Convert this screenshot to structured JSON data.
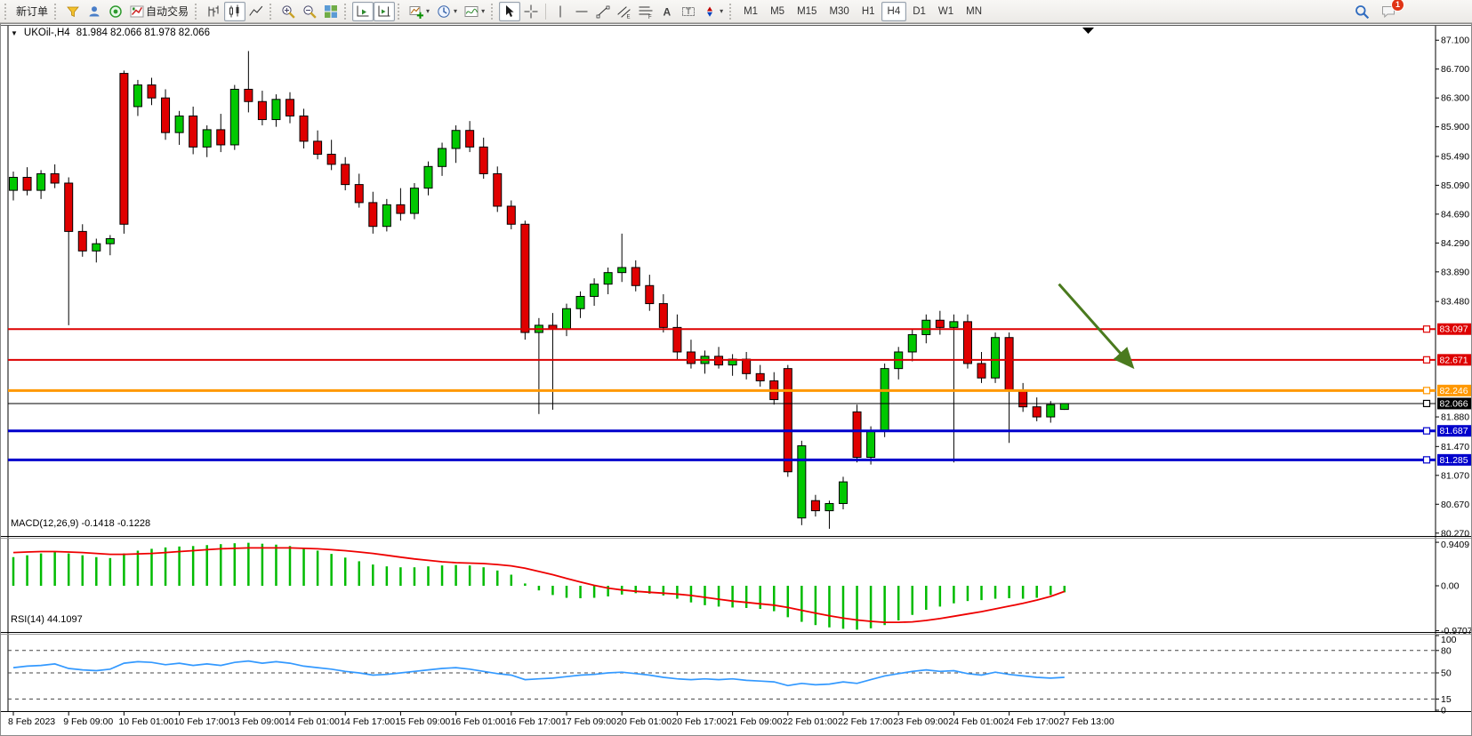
{
  "toolbar": {
    "new_order_label": "新订单",
    "auto_trading_label": "自动交易",
    "notification_count": "1",
    "tool_letters": {
      "channel": "E",
      "fibo": "F",
      "text": "A",
      "label": "T"
    },
    "timeframes": [
      "M1",
      "M5",
      "M15",
      "M30",
      "H1",
      "H4",
      "D1",
      "W1",
      "MN"
    ],
    "active_timeframe": "H4"
  },
  "chart": {
    "symbol_period": "UKOil-,H4",
    "ohlc": "81.984 82.066 81.978 82.066"
  },
  "chart_data": [
    {
      "type": "candlestick",
      "title": "UKOil-,H4",
      "ohlc_display": "81.984 82.066 81.978 82.066",
      "up_color": "#00c800",
      "down_color": "#e00000",
      "wick_color": "#000000",
      "ylim": [
        80.23,
        87.3
      ],
      "y_ticks": [
        "87.100",
        "86.700",
        "86.300",
        "85.900",
        "85.490",
        "85.090",
        "84.690",
        "84.290",
        "83.890",
        "83.480",
        "81.880",
        "81.470",
        "81.070",
        "80.670",
        "80.270"
      ],
      "x_labels": [
        "8 Feb 2023",
        "9 Feb 09:00",
        "10 Feb 01:00",
        "10 Feb 17:00",
        "13 Feb 09:00",
        "14 Feb 01:00",
        "14 Feb 17:00",
        "15 Feb 09:00",
        "16 Feb 01:00",
        "16 Feb 17:00",
        "17 Feb 09:00",
        "20 Feb 01:00",
        "20 Feb 17:00",
        "21 Feb 09:00",
        "22 Feb 01:00",
        "22 Feb 17:00",
        "23 Feb 09:00",
        "24 Feb 01:00",
        "24 Feb 17:00",
        "27 Feb 13:00"
      ],
      "x_label_every": 4,
      "hlines": [
        {
          "price": 83.097,
          "label": "83.097",
          "color": "#dd0000",
          "width": 2
        },
        {
          "price": 82.671,
          "label": "82.671",
          "color": "#dd0000",
          "width": 2
        },
        {
          "price": 82.246,
          "label": "82.246",
          "color": "#ff9800",
          "width": 3
        },
        {
          "price": 82.066,
          "label": "82.066",
          "color": "#000000",
          "width": 1
        },
        {
          "price": 81.687,
          "label": "81.687",
          "color": "#0000cc",
          "width": 3
        },
        {
          "price": 81.285,
          "label": "81.285",
          "color": "#0000cc",
          "width": 3
        }
      ],
      "arrow": {
        "from_bar": 75.6,
        "from_price": 83.72,
        "to_bar": 80.8,
        "to_price": 82.6,
        "color": "#4a7a1e"
      },
      "candles": [
        [
          85.02,
          85.28,
          84.88,
          85.2
        ],
        [
          85.2,
          85.34,
          84.95,
          85.02
        ],
        [
          85.02,
          85.3,
          84.9,
          85.25
        ],
        [
          85.25,
          85.38,
          85.05,
          85.12
        ],
        [
          85.12,
          85.2,
          83.15,
          84.45
        ],
        [
          84.45,
          84.55,
          84.1,
          84.18
        ],
        [
          84.18,
          84.35,
          84.02,
          84.28
        ],
        [
          84.28,
          84.4,
          84.12,
          84.35
        ],
        [
          86.64,
          86.68,
          84.42,
          84.55
        ],
        [
          86.18,
          86.55,
          86.05,
          86.48
        ],
        [
          86.48,
          86.58,
          86.2,
          86.3
        ],
        [
          86.3,
          86.42,
          85.72,
          85.82
        ],
        [
          85.82,
          86.12,
          85.65,
          86.05
        ],
        [
          86.05,
          86.18,
          85.52,
          85.62
        ],
        [
          85.62,
          85.92,
          85.48,
          85.86
        ],
        [
          85.86,
          86.08,
          85.55,
          85.65
        ],
        [
          85.65,
          86.48,
          85.58,
          86.42
        ],
        [
          86.42,
          86.95,
          86.1,
          86.25
        ],
        [
          86.25,
          86.4,
          85.92,
          86.0
        ],
        [
          86.0,
          86.35,
          85.9,
          86.28
        ],
        [
          86.28,
          86.38,
          85.95,
          86.05
        ],
        [
          86.05,
          86.15,
          85.6,
          85.7
        ],
        [
          85.7,
          85.85,
          85.45,
          85.52
        ],
        [
          85.52,
          85.72,
          85.3,
          85.38
        ],
        [
          85.38,
          85.48,
          85.02,
          85.1
        ],
        [
          85.1,
          85.25,
          84.78,
          84.85
        ],
        [
          84.85,
          85.0,
          84.42,
          84.52
        ],
        [
          84.52,
          84.9,
          84.45,
          84.82
        ],
        [
          84.82,
          85.05,
          84.6,
          84.7
        ],
        [
          84.7,
          85.12,
          84.62,
          85.05
        ],
        [
          85.05,
          85.42,
          84.95,
          85.35
        ],
        [
          85.35,
          85.68,
          85.22,
          85.6
        ],
        [
          85.6,
          85.92,
          85.4,
          85.85
        ],
        [
          85.85,
          85.98,
          85.55,
          85.62
        ],
        [
          85.62,
          85.75,
          85.18,
          85.25
        ],
        [
          85.25,
          85.35,
          84.72,
          84.8
        ],
        [
          84.8,
          84.88,
          84.48,
          84.55
        ],
        [
          84.55,
          84.6,
          82.95,
          83.05
        ],
        [
          83.05,
          83.25,
          81.92,
          83.15
        ],
        [
          83.15,
          83.32,
          81.98,
          83.1
        ],
        [
          83.1,
          83.45,
          83.0,
          83.38
        ],
        [
          83.38,
          83.62,
          83.25,
          83.55
        ],
        [
          83.55,
          83.8,
          83.42,
          83.72
        ],
        [
          83.72,
          83.95,
          83.58,
          83.88
        ],
        [
          83.88,
          84.42,
          83.75,
          83.95
        ],
        [
          83.95,
          84.05,
          83.62,
          83.7
        ],
        [
          83.7,
          83.85,
          83.35,
          83.45
        ],
        [
          83.45,
          83.58,
          83.05,
          83.12
        ],
        [
          83.12,
          83.3,
          82.68,
          82.78
        ],
        [
          82.78,
          82.95,
          82.55,
          82.62
        ],
        [
          82.62,
          82.8,
          82.48,
          82.72
        ],
        [
          82.72,
          82.85,
          82.55,
          82.6
        ],
        [
          82.6,
          82.75,
          82.45,
          82.68
        ],
        [
          82.68,
          82.78,
          82.4,
          82.48
        ],
        [
          82.48,
          82.6,
          82.3,
          82.38
        ],
        [
          82.38,
          82.5,
          82.05,
          82.12
        ],
        [
          82.55,
          82.6,
          81.05,
          81.12
        ],
        [
          80.48,
          81.55,
          80.38,
          81.48
        ],
        [
          80.72,
          80.8,
          80.5,
          80.58
        ],
        [
          80.58,
          80.72,
          80.33,
          80.68
        ],
        [
          80.68,
          81.05,
          80.6,
          80.98
        ],
        [
          81.95,
          82.05,
          81.25,
          81.32
        ],
        [
          81.32,
          81.75,
          81.22,
          81.68
        ],
        [
          81.68,
          82.62,
          81.6,
          82.55
        ],
        [
          82.55,
          82.85,
          82.4,
          82.78
        ],
        [
          82.78,
          83.1,
          82.65,
          83.02
        ],
        [
          83.02,
          83.3,
          82.9,
          83.22
        ],
        [
          83.22,
          83.35,
          83.02,
          83.12
        ],
        [
          83.12,
          83.3,
          81.25,
          83.2
        ],
        [
          83.2,
          83.3,
          82.55,
          82.62
        ],
        [
          82.62,
          82.78,
          82.35,
          82.42
        ],
        [
          82.42,
          83.05,
          82.35,
          82.98
        ],
        [
          82.98,
          83.05,
          81.52,
          82.25
        ],
        [
          82.25,
          82.35,
          81.95,
          82.02
        ],
        [
          82.02,
          82.15,
          81.82,
          81.88
        ],
        [
          81.88,
          82.1,
          81.8,
          82.05
        ],
        [
          81.984,
          82.066,
          81.978,
          82.066
        ]
      ]
    },
    {
      "type": "macd",
      "label": "MACD(12,26,9) -0.1418 -0.1228",
      "histogram_color": "#00bb00",
      "signal_color": "#ee0000",
      "ylim": [
        -1.0,
        1.0
      ],
      "y_ticks": [
        "0.9409",
        "0.00",
        "-0.9707"
      ],
      "values": [
        0.62,
        0.66,
        0.7,
        0.73,
        0.7,
        0.66,
        0.62,
        0.6,
        0.7,
        0.76,
        0.8,
        0.83,
        0.85,
        0.86,
        0.88,
        0.9,
        0.92,
        0.93,
        0.91,
        0.89,
        0.86,
        0.82,
        0.76,
        0.69,
        0.61,
        0.53,
        0.46,
        0.42,
        0.4,
        0.4,
        0.42,
        0.44,
        0.45,
        0.44,
        0.4,
        0.33,
        0.24,
        0.05,
        -0.1,
        -0.2,
        -0.26,
        -0.27,
        -0.26,
        -0.23,
        -0.19,
        -0.16,
        -0.17,
        -0.21,
        -0.28,
        -0.36,
        -0.42,
        -0.45,
        -0.47,
        -0.48,
        -0.5,
        -0.55,
        -0.68,
        -0.78,
        -0.85,
        -0.9,
        -0.93,
        -0.95,
        -0.92,
        -0.85,
        -0.75,
        -0.63,
        -0.52,
        -0.45,
        -0.38,
        -0.33,
        -0.31,
        -0.28,
        -0.27,
        -0.28,
        -0.26,
        -0.2,
        -0.1418
      ],
      "signal": [
        0.72,
        0.73,
        0.74,
        0.74,
        0.73,
        0.72,
        0.7,
        0.68,
        0.68,
        0.69,
        0.7,
        0.72,
        0.74,
        0.76,
        0.78,
        0.8,
        0.81,
        0.82,
        0.82,
        0.82,
        0.82,
        0.81,
        0.8,
        0.78,
        0.76,
        0.73,
        0.7,
        0.66,
        0.62,
        0.58,
        0.55,
        0.52,
        0.5,
        0.49,
        0.48,
        0.46,
        0.43,
        0.38,
        0.31,
        0.24,
        0.16,
        0.08,
        0.01,
        -0.05,
        -0.09,
        -0.12,
        -0.14,
        -0.16,
        -0.18,
        -0.21,
        -0.25,
        -0.29,
        -0.33,
        -0.36,
        -0.39,
        -0.42,
        -0.47,
        -0.53,
        -0.59,
        -0.65,
        -0.7,
        -0.74,
        -0.77,
        -0.79,
        -0.79,
        -0.78,
        -0.75,
        -0.71,
        -0.66,
        -0.61,
        -0.56,
        -0.5,
        -0.44,
        -0.38,
        -0.31,
        -0.23,
        -0.1228
      ]
    },
    {
      "type": "rsi",
      "label": "RSI(14) 44.1097",
      "line_color": "#3399ff",
      "ylim": [
        0,
        100
      ],
      "levels": [
        80,
        50,
        15
      ],
      "y_ticks": [
        "100",
        "80",
        "50",
        "15",
        "0"
      ],
      "values": [
        57,
        59,
        60,
        62,
        56,
        54,
        53,
        55,
        63,
        65,
        64,
        61,
        63,
        60,
        62,
        60,
        64,
        66,
        63,
        65,
        63,
        59,
        57,
        55,
        52,
        50,
        47,
        48,
        50,
        52,
        54,
        56,
        57,
        55,
        52,
        49,
        47,
        41,
        42,
        43,
        45,
        47,
        48,
        50,
        51,
        49,
        47,
        44,
        42,
        41,
        42,
        41,
        42,
        40,
        39,
        38,
        33,
        36,
        34,
        35,
        38,
        36,
        41,
        46,
        49,
        52,
        54,
        52,
        53,
        49,
        47,
        51,
        48,
        46,
        44,
        43,
        44.1
      ]
    }
  ]
}
